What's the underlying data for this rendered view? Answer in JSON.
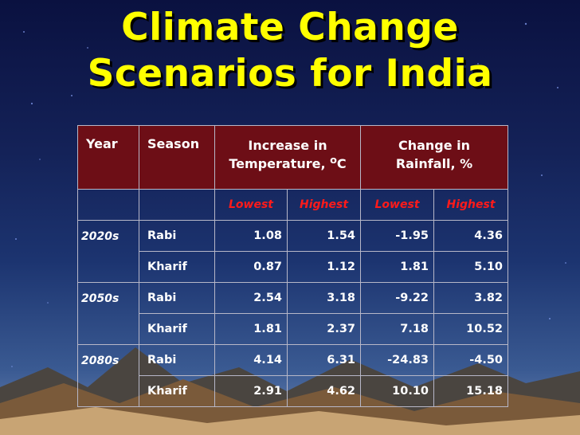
{
  "title": {
    "line1": "Climate Change",
    "line2": "Scenarios for India"
  },
  "table": {
    "headers": {
      "year": "Year",
      "season": "Season",
      "temperature_line1": "Increase in",
      "temperature_line2": "Temperature,",
      "temperature_unit_degree": "o",
      "temperature_unit": "C",
      "rainfall_line1": "Change in",
      "rainfall_line2": "Rainfall, %"
    },
    "subheaders": [
      "Lowest",
      "Highest",
      "Lowest",
      "Highest"
    ],
    "rows": [
      {
        "year": "2020s",
        "season": "Rabi",
        "t_low": "1.08",
        "t_high": "1.54",
        "r_low": "-1.95",
        "r_high": "4.36"
      },
      {
        "year": "",
        "season": "Kharif",
        "t_low": "0.87",
        "t_high": "1.12",
        "r_low": "1.81",
        "r_high": "5.10"
      },
      {
        "year": "2050s",
        "season": "Rabi",
        "t_low": "2.54",
        "t_high": "3.18",
        "r_low": "-9.22",
        "r_high": "3.82"
      },
      {
        "year": "",
        "season": "Kharif",
        "t_low": "1.81",
        "t_high": "2.37",
        "r_low": "7.18",
        "r_high": "10.52"
      },
      {
        "year": "2080s",
        "season": "Rabi",
        "t_low": "4.14",
        "t_high": "6.31",
        "r_low": "-24.83",
        "r_high": "-4.50"
      },
      {
        "year": "",
        "season": "Kharif",
        "t_low": "2.91",
        "t_high": "4.62",
        "r_low": "10.10",
        "r_high": "15.18"
      }
    ]
  }
}
